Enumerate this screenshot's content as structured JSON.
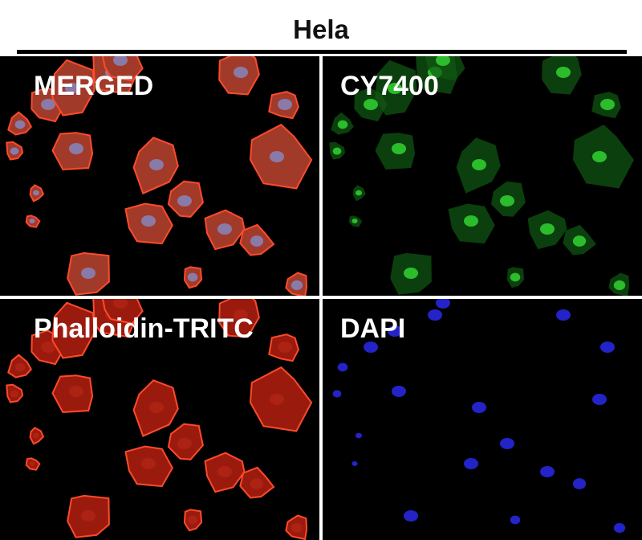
{
  "title": "Hela",
  "panels": [
    {
      "label": "MERGED",
      "channel": "merged"
    },
    {
      "label": "CY7400",
      "channel": "green",
      "color": "#1faa1f"
    },
    {
      "label": "Phalloidin-TRITC",
      "channel": "red",
      "color": "#e0301a"
    },
    {
      "label": "DAPI",
      "channel": "blue",
      "color": "#2a2ad0"
    }
  ]
}
